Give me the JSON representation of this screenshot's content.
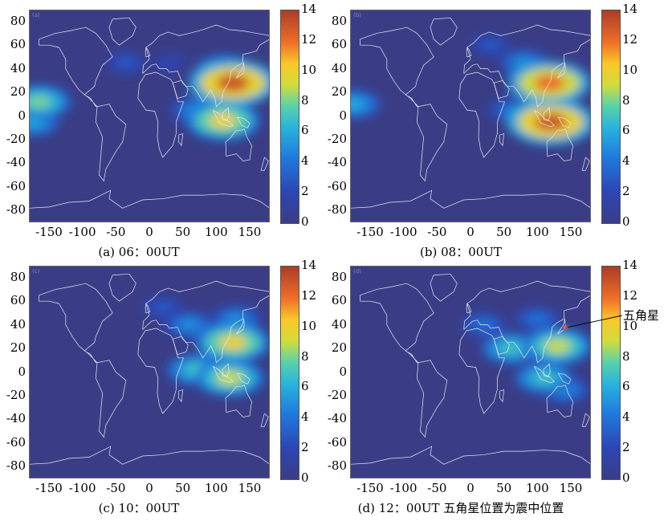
{
  "chart_data": [
    {
      "type": "heatmap",
      "caption": "(a) 06：00UT",
      "xlim": [
        -180,
        180
      ],
      "ylim": [
        -90,
        90
      ],
      "xticks": [
        -150,
        -100,
        -50,
        0,
        50,
        100,
        150
      ],
      "yticks": [
        80,
        60,
        40,
        20,
        0,
        -20,
        -40,
        -60,
        -80
      ],
      "colorbar": {
        "min": 0,
        "max": 14,
        "ticks": [
          0,
          2,
          4,
          6,
          8,
          10,
          12,
          14
        ]
      },
      "blobs": [
        {
          "lon": 125,
          "lat": 28,
          "value": 13
        },
        {
          "lon": 110,
          "lat": 40,
          "value": 6
        },
        {
          "lon": 110,
          "lat": -4,
          "value": 10
        },
        {
          "lon": 70,
          "lat": 5,
          "value": 5
        },
        {
          "lon": -165,
          "lat": 12,
          "value": 8
        },
        {
          "lon": -175,
          "lat": -5,
          "value": 6
        },
        {
          "lon": -35,
          "lat": 45,
          "value": 3
        },
        {
          "lon": 30,
          "lat": 45,
          "value": 2
        }
      ],
      "panel_tag": "(a)"
    },
    {
      "type": "heatmap",
      "caption": "(b) 08：00UT",
      "xlim": [
        -180,
        180
      ],
      "ylim": [
        -90,
        90
      ],
      "xticks": [
        -150,
        -100,
        -50,
        0,
        50,
        100,
        150
      ],
      "yticks": [
        80,
        60,
        40,
        20,
        0,
        -20,
        -40,
        -60,
        -80
      ],
      "colorbar": {
        "min": 0,
        "max": 14,
        "ticks": [
          0,
          2,
          4,
          6,
          8,
          10,
          12,
          14
        ]
      },
      "blobs": [
        {
          "lon": 118,
          "lat": 28,
          "value": 12
        },
        {
          "lon": 120,
          "lat": -5,
          "value": 13
        },
        {
          "lon": 80,
          "lat": 45,
          "value": 5
        },
        {
          "lon": 30,
          "lat": 60,
          "value": 3
        },
        {
          "lon": 60,
          "lat": 5,
          "value": 4
        },
        {
          "lon": -175,
          "lat": 10,
          "value": 6
        }
      ],
      "panel_tag": "(b)"
    },
    {
      "type": "heatmap",
      "caption": "(c) 10：00UT",
      "xlim": [
        -180,
        180
      ],
      "ylim": [
        -90,
        90
      ],
      "xticks": [
        -150,
        -100,
        -50,
        0,
        50,
        100,
        150
      ],
      "yticks": [
        80,
        60,
        40,
        20,
        0,
        -20,
        -40,
        -60,
        -80
      ],
      "colorbar": {
        "min": 0,
        "max": 14,
        "ticks": [
          0,
          2,
          4,
          6,
          8,
          10,
          12,
          14
        ]
      },
      "blobs": [
        {
          "lon": 125,
          "lat": 25,
          "value": 10
        },
        {
          "lon": 120,
          "lat": -5,
          "value": 9
        },
        {
          "lon": 70,
          "lat": 2,
          "value": 7
        },
        {
          "lon": 60,
          "lat": 40,
          "value": 5
        },
        {
          "lon": 130,
          "lat": 45,
          "value": 5
        },
        {
          "lon": 20,
          "lat": 55,
          "value": 3
        }
      ],
      "panel_tag": "(c)"
    },
    {
      "type": "heatmap",
      "caption": "(d) 12：00UT 五角星位置为震中位置",
      "xlim": [
        -180,
        180
      ],
      "ylim": [
        -90,
        90
      ],
      "xticks": [
        -150,
        -100,
        -50,
        0,
        50,
        100,
        150
      ],
      "yticks": [
        80,
        60,
        40,
        20,
        0,
        -20,
        -40,
        -60,
        -80
      ],
      "colorbar": {
        "min": 0,
        "max": 14,
        "ticks": [
          0,
          2,
          4,
          6,
          8,
          10,
          12,
          14
        ]
      },
      "blobs": [
        {
          "lon": 130,
          "lat": 22,
          "value": 9
        },
        {
          "lon": 60,
          "lat": 20,
          "value": 7
        },
        {
          "lon": 110,
          "lat": -5,
          "value": 7
        },
        {
          "lon": 20,
          "lat": 40,
          "value": 4
        },
        {
          "lon": 100,
          "lat": 45,
          "value": 4
        },
        {
          "lon": 140,
          "lat": -15,
          "value": 5
        }
      ],
      "epicenter": {
        "lon": 142,
        "lat": 38
      },
      "annotation": "五角星",
      "panel_tag": "(d)"
    }
  ]
}
